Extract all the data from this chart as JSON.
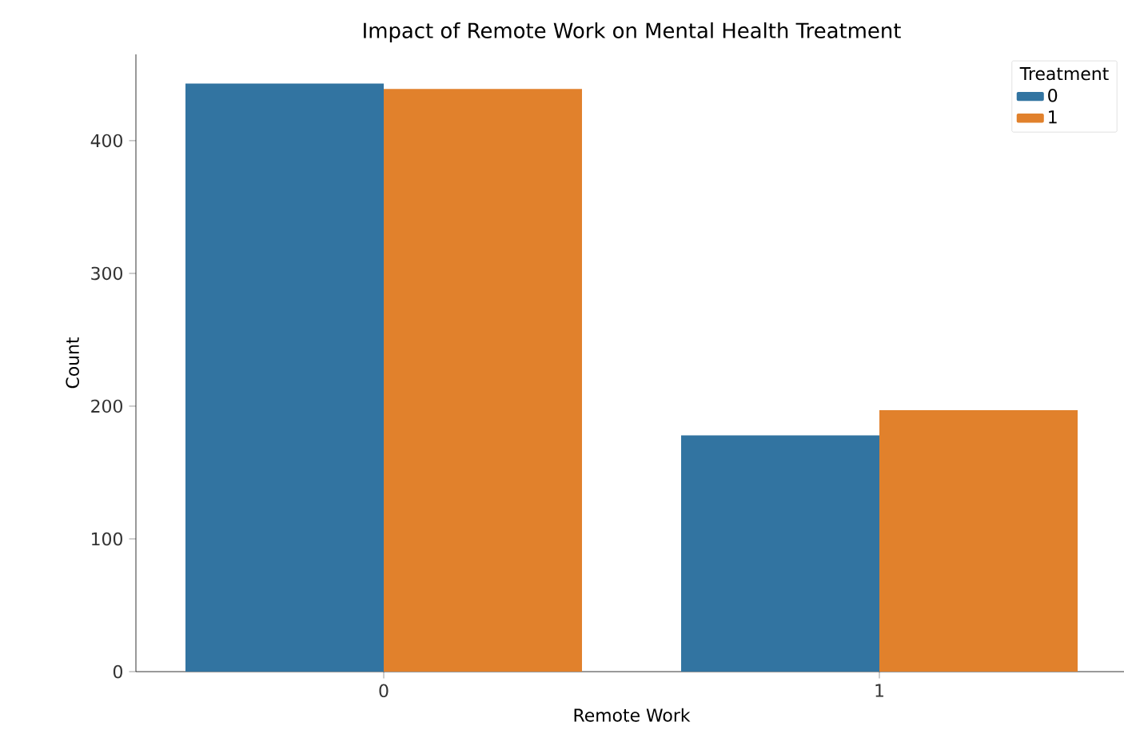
{
  "chart_data": {
    "type": "bar",
    "title": "Impact of Remote Work on Mental Health Treatment",
    "xlabel": "Remote Work",
    "ylabel": "Count",
    "categories": [
      "0",
      "1"
    ],
    "legend_title": "Treatment",
    "series": [
      {
        "name": "0",
        "color": "#3274a1",
        "values": [
          443,
          178
        ]
      },
      {
        "name": "1",
        "color": "#e1812c",
        "values": [
          439,
          197
        ]
      }
    ],
    "ylim": [
      0,
      465
    ],
    "yticks": [
      0,
      100,
      200,
      300,
      400
    ],
    "legend": "top right",
    "grid": false
  }
}
